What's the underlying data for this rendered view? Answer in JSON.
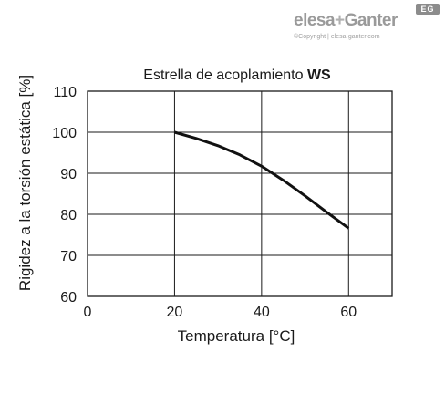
{
  "brand": {
    "logo_name": "elesa",
    "logo_plus": "+",
    "logo_second": "Ganter",
    "badge": "EG",
    "copyright": "©Copyright | elesa-ganter.com"
  },
  "colors": {
    "grid": "#1a1a1a",
    "series": "#111111",
    "logo": "#9a9a9a"
  },
  "chart_data": {
    "type": "line",
    "title": "Estrella de acoplamiento",
    "title_bold": "WS",
    "xlabel": "Temperatura [°C]",
    "ylabel": "Rigidez a la torsión estática [%]",
    "xlim": [
      0,
      70
    ],
    "ylim": [
      60,
      110
    ],
    "xticks": [
      0,
      20,
      40,
      60
    ],
    "yticks": [
      60,
      70,
      80,
      90,
      100,
      110
    ],
    "x_gridlines": [
      20,
      40,
      60
    ],
    "grid": true,
    "series": [
      {
        "x": [
          20,
          25,
          30,
          35,
          40,
          45,
          50,
          55,
          60
        ],
        "y": [
          100,
          98.5,
          96.7,
          94.5,
          91.7,
          88.3,
          84.5,
          80.5,
          76.6
        ]
      }
    ]
  }
}
